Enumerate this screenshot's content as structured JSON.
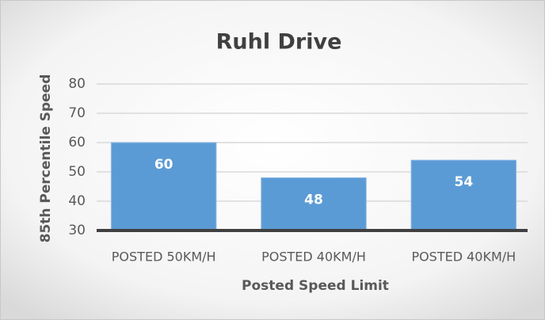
{
  "chart_data": {
    "type": "bar",
    "title": "Ruhl Drive",
    "x_label": "Posted Speed Limit",
    "y_label": "85th Percentile Speed",
    "categories": [
      "POSTED 50KM/H",
      "POSTED 40KM/H",
      "POSTED 40KM/H"
    ],
    "values": [
      60,
      48,
      54
    ],
    "color": "#5b9bd5",
    "ylim": [
      30,
      80
    ],
    "yticks": [
      30,
      40,
      50,
      60,
      70,
      80
    ],
    "grid": true
  }
}
